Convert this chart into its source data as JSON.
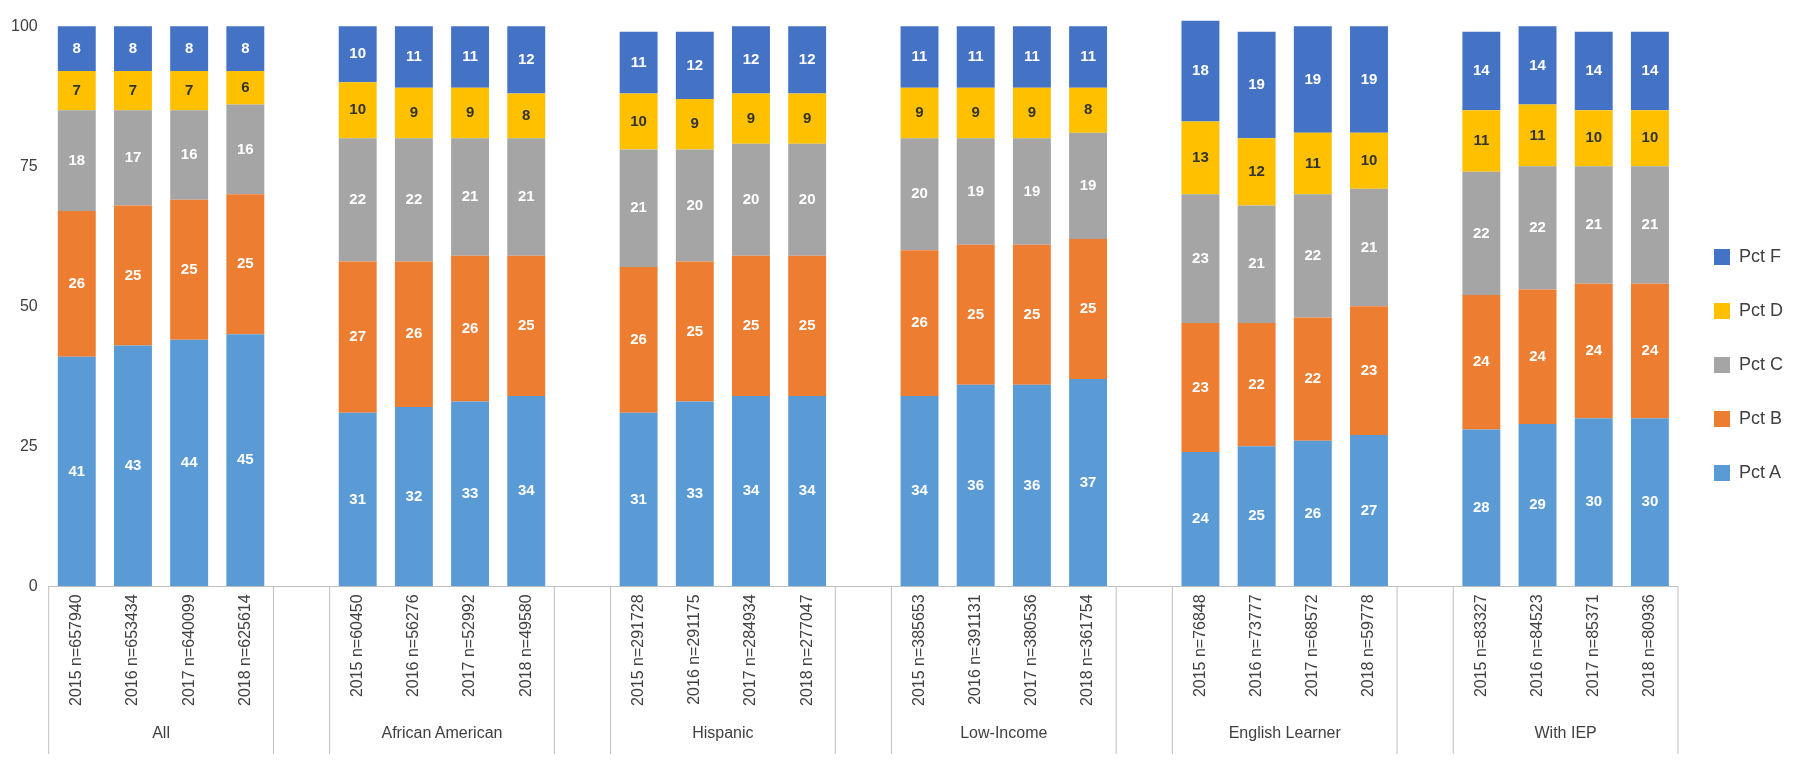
{
  "chart_data": {
    "type": "bar",
    "stacked": true,
    "data_labels": true,
    "legend": "right",
    "grid": false,
    "ylim": [
      0,
      101
    ],
    "yticks": [
      0,
      25,
      50,
      75,
      100
    ],
    "categories": [
      "2015 n=657940",
      "2016 n=653434",
      "2017 n=640099",
      "2018 n=625614",
      null,
      "2015 n=60450",
      "2016 n=56276",
      "2017 n=52992",
      "2018 n=49580",
      null,
      "2015 n=291728",
      "2016 n=291175",
      "2017 n=284934",
      "2018 n=277047",
      null,
      "2015 n=385653",
      "2016 n=391131",
      "2017 n=380536",
      "2018 n=361754",
      null,
      "2015 n=76848",
      "2016 n=73777",
      "2017 n=68572",
      "2018 n=59778",
      null,
      "2015 n=83327",
      "2016 n=84523",
      "2017 n=85371",
      "2018 n=80936"
    ],
    "annotations": [
      "All",
      "African American",
      "Hispanic",
      "Low-Income",
      "English Learner",
      "With IEP"
    ],
    "series": [
      {
        "name": "Pct A",
        "color": "#5b9bd5",
        "values": [
          41,
          43,
          44,
          45,
          null,
          31,
          32,
          33,
          34,
          null,
          31,
          33,
          34,
          34,
          null,
          34,
          36,
          36,
          37,
          null,
          24,
          25,
          26,
          27,
          null,
          28,
          29,
          30,
          30
        ]
      },
      {
        "name": "Pct B",
        "color": "#ed7d31",
        "values": [
          26,
          25,
          25,
          25,
          null,
          27,
          26,
          26,
          25,
          null,
          26,
          25,
          25,
          25,
          null,
          26,
          25,
          25,
          25,
          null,
          23,
          22,
          22,
          23,
          null,
          24,
          24,
          24,
          24
        ]
      },
      {
        "name": "Pct C",
        "color": "#a5a5a5",
        "values": [
          18,
          17,
          16,
          16,
          null,
          22,
          22,
          21,
          21,
          null,
          21,
          20,
          20,
          20,
          null,
          20,
          19,
          19,
          19,
          null,
          23,
          21,
          22,
          21,
          null,
          22,
          22,
          21,
          21
        ]
      },
      {
        "name": "Pct D",
        "color": "#ffc000",
        "values": [
          7,
          7,
          7,
          6,
          null,
          10,
          9,
          9,
          8,
          null,
          10,
          9,
          9,
          9,
          null,
          9,
          9,
          9,
          8,
          null,
          13,
          12,
          11,
          10,
          null,
          11,
          11,
          10,
          10
        ]
      },
      {
        "name": "Pct F",
        "color": "#4472c4",
        "values": [
          8,
          8,
          8,
          8,
          null,
          10,
          11,
          11,
          12,
          null,
          11,
          12,
          12,
          12,
          null,
          11,
          11,
          11,
          11,
          null,
          18,
          19,
          19,
          19,
          null,
          14,
          14,
          14,
          14
        ]
      }
    ]
  }
}
